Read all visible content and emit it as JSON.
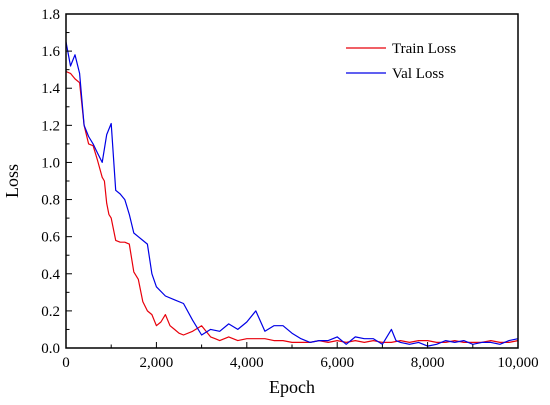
{
  "chart_data": {
    "type": "line",
    "title": "",
    "xlabel": "Epoch",
    "ylabel": "Loss",
    "xlim": [
      0,
      10000
    ],
    "ylim": [
      0,
      1.8
    ],
    "x_ticks": [
      0,
      2000,
      4000,
      6000,
      8000,
      10000
    ],
    "x_tick_labels": [
      "0",
      "2,000",
      "4,000",
      "6,000",
      "8,000",
      "10,000"
    ],
    "y_ticks": [
      0.0,
      0.2,
      0.4,
      0.6,
      0.8,
      1.0,
      1.2,
      1.4,
      1.6,
      1.8
    ],
    "y_tick_labels": [
      "0.0",
      "0.2",
      "0.4",
      "0.6",
      "0.8",
      "1.0",
      "1.2",
      "1.4",
      "1.6",
      "1.8"
    ],
    "grid": false,
    "legend_position": "top-right",
    "series": [
      {
        "name": "Train Loss",
        "color": "#e8000b",
        "x": [
          0,
          100,
          200,
          300,
          400,
          500,
          600,
          700,
          800,
          850,
          900,
          950,
          1000,
          1100,
          1200,
          1300,
          1400,
          1500,
          1600,
          1700,
          1800,
          1900,
          2000,
          2100,
          2200,
          2300,
          2400,
          2500,
          2600,
          2800,
          3000,
          3200,
          3300,
          3400,
          3600,
          3800,
          4000,
          4200,
          4400,
          4600,
          4800,
          5000,
          5200,
          5400,
          5600,
          5800,
          6000,
          6200,
          6400,
          6600,
          6800,
          7000,
          7200,
          7400,
          7600,
          7800,
          8000,
          8200,
          8400,
          8600,
          8800,
          9000,
          9200,
          9400,
          9600,
          9800,
          10000
        ],
        "y": [
          1.49,
          1.48,
          1.45,
          1.43,
          1.2,
          1.1,
          1.09,
          1.01,
          0.92,
          0.9,
          0.78,
          0.72,
          0.7,
          0.58,
          0.57,
          0.57,
          0.56,
          0.41,
          0.37,
          0.25,
          0.2,
          0.18,
          0.12,
          0.14,
          0.18,
          0.12,
          0.1,
          0.08,
          0.07,
          0.09,
          0.12,
          0.06,
          0.05,
          0.04,
          0.06,
          0.04,
          0.05,
          0.05,
          0.05,
          0.04,
          0.04,
          0.03,
          0.03,
          0.03,
          0.04,
          0.03,
          0.04,
          0.03,
          0.04,
          0.03,
          0.04,
          0.03,
          0.03,
          0.04,
          0.03,
          0.04,
          0.04,
          0.03,
          0.03,
          0.04,
          0.03,
          0.03,
          0.03,
          0.04,
          0.03,
          0.03,
          0.04
        ]
      },
      {
        "name": "Val Loss",
        "color": "#0000e6",
        "x": [
          0,
          100,
          200,
          300,
          400,
          500,
          600,
          700,
          800,
          900,
          1000,
          1100,
          1200,
          1300,
          1400,
          1500,
          1600,
          1700,
          1800,
          1900,
          2000,
          2200,
          2400,
          2600,
          2800,
          3000,
          3200,
          3400,
          3600,
          3800,
          4000,
          4200,
          4400,
          4600,
          4800,
          5000,
          5200,
          5400,
          5600,
          5800,
          6000,
          6200,
          6400,
          6600,
          6800,
          7000,
          7200,
          7300,
          7400,
          7600,
          7800,
          8000,
          8200,
          8400,
          8600,
          8800,
          9000,
          9200,
          9400,
          9600,
          9800,
          10000
        ],
        "y": [
          1.65,
          1.52,
          1.58,
          1.48,
          1.2,
          1.14,
          1.1,
          1.05,
          1.0,
          1.15,
          1.21,
          0.85,
          0.83,
          0.8,
          0.72,
          0.62,
          0.6,
          0.58,
          0.56,
          0.4,
          0.33,
          0.28,
          0.26,
          0.24,
          0.15,
          0.07,
          0.1,
          0.09,
          0.13,
          0.1,
          0.14,
          0.2,
          0.09,
          0.12,
          0.12,
          0.08,
          0.05,
          0.03,
          0.04,
          0.04,
          0.06,
          0.02,
          0.06,
          0.05,
          0.05,
          0.02,
          0.1,
          0.04,
          0.03,
          0.02,
          0.03,
          0.01,
          0.02,
          0.04,
          0.03,
          0.04,
          0.02,
          0.03,
          0.03,
          0.02,
          0.04,
          0.05
        ]
      }
    ]
  }
}
